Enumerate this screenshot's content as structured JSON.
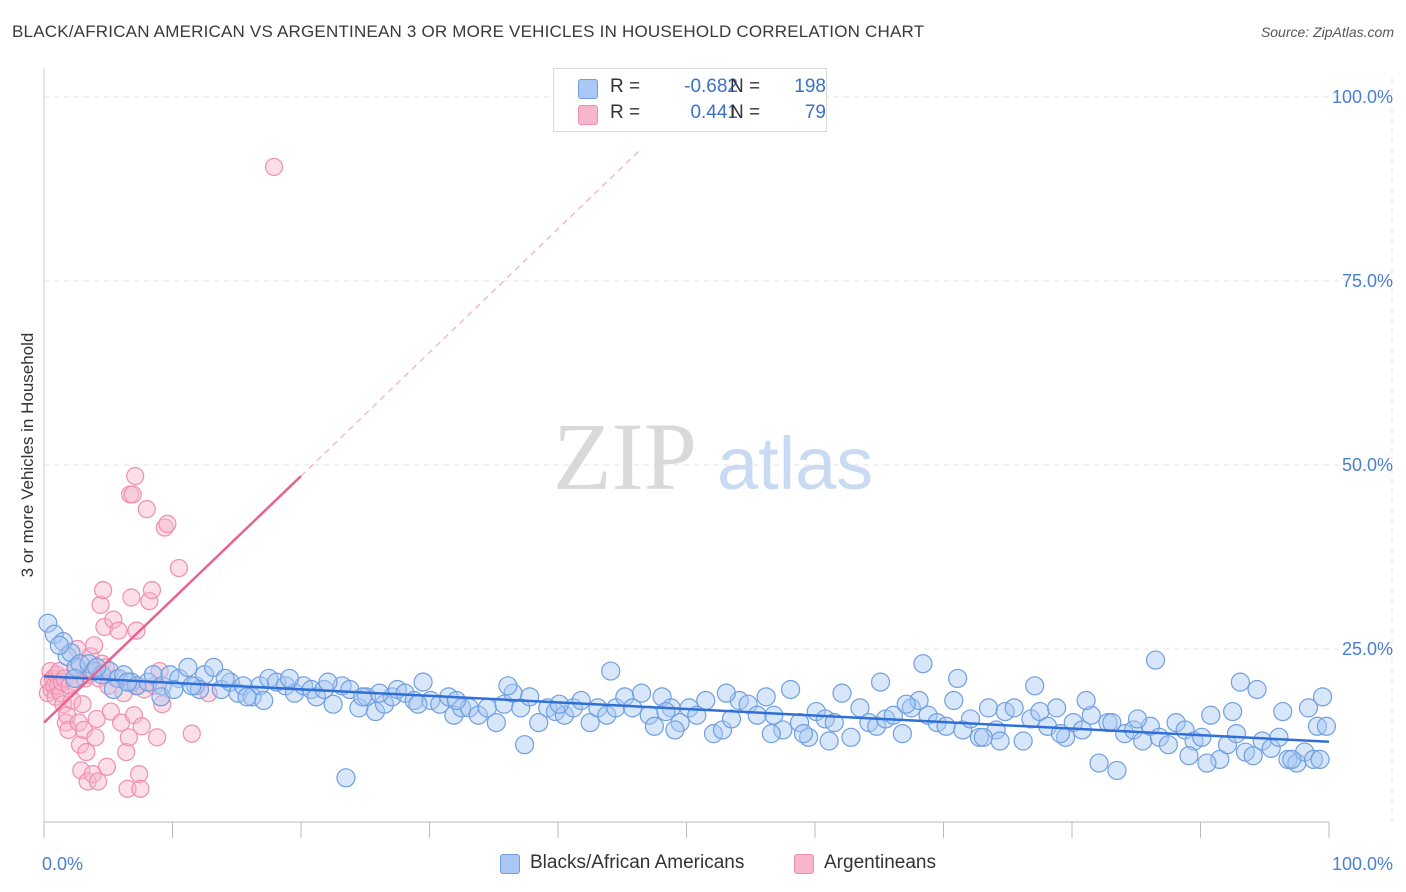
{
  "header": {
    "title": "BLACK/AFRICAN AMERICAN VS ARGENTINEAN 3 OR MORE VEHICLES IN HOUSEHOLD CORRELATION CHART",
    "source": "Source: ZipAtlas.com"
  },
  "watermark": {
    "part1": "ZIP",
    "part2": "atlas"
  },
  "legend": {
    "rows": [
      {
        "r_label": "R =",
        "r_value": "-0.682",
        "n_label": "N =",
        "n_value": "198",
        "color": "#a9c8f5"
      },
      {
        "r_label": "R =",
        "r_value": "0.441",
        "n_label": "N =",
        "n_value": "79",
        "color": "#f7b6cb"
      }
    ]
  },
  "bottom_legend": {
    "items": [
      {
        "label": "Blacks/African Americans",
        "color": "#a9c8f5"
      },
      {
        "label": "Argentineans",
        "color": "#f7b6cb"
      }
    ]
  },
  "colors": {
    "blue_fill": "#a9c8f5",
    "blue_stroke": "#6f9fe0",
    "blue_line": "#2f6fd6",
    "pink_fill": "#f7b6cb",
    "pink_stroke": "#ee8fb0",
    "pink_line": "#e9628f",
    "tick_label": "#4a7fd1",
    "grid": "#e3e3e3"
  },
  "chart_data": {
    "type": "scatter",
    "title": "BLACK/AFRICAN AMERICAN VS ARGENTINEAN 3 OR MORE VEHICLES IN HOUSEHOLD CORRELATION CHART",
    "ylabel": "3 or more Vehicles in Household",
    "xlabel": "",
    "xlim": [
      0,
      100
    ],
    "ylim": [
      0,
      105
    ],
    "x_tick_labels": [
      "0.0%",
      "100.0%"
    ],
    "y_ticks": [
      25,
      50,
      75,
      100
    ],
    "y_tick_labels": [
      "25.0%",
      "50.0%",
      "75.0%",
      "100.0%"
    ],
    "grid": true,
    "legend_position": "top-center",
    "series": [
      {
        "name": "Blacks/African Americans",
        "r": -0.682,
        "n": 198,
        "trend": {
          "x": [
            0,
            100
          ],
          "y": [
            21.3,
            12.4
          ]
        },
        "points": [
          [
            0.3,
            28.5
          ],
          [
            0.8,
            27
          ],
          [
            1.5,
            26
          ],
          [
            1.8,
            24
          ],
          [
            2.1,
            24.5
          ],
          [
            2.5,
            22.5
          ],
          [
            2.8,
            23
          ],
          [
            3.5,
            23
          ],
          [
            3.9,
            22
          ],
          [
            4.5,
            21.5
          ],
          [
            5.1,
            22
          ],
          [
            5.8,
            21
          ],
          [
            6.2,
            21.5
          ],
          [
            6.8,
            20.5
          ],
          [
            7.2,
            20
          ],
          [
            8.1,
            20.5
          ],
          [
            8.5,
            21.5
          ],
          [
            9.2,
            20
          ],
          [
            9.8,
            21.5
          ],
          [
            10.5,
            21
          ],
          [
            11.2,
            22.5
          ],
          [
            11.8,
            20
          ],
          [
            12.5,
            21.5
          ],
          [
            13.2,
            22.5
          ],
          [
            13.8,
            19.5
          ],
          [
            14.5,
            20.5
          ],
          [
            15.1,
            19
          ],
          [
            15.5,
            20
          ],
          [
            16.2,
            18.5
          ],
          [
            16.8,
            20
          ],
          [
            17.5,
            21
          ],
          [
            18.1,
            20.5
          ],
          [
            18.8,
            20
          ],
          [
            19.5,
            19
          ],
          [
            20.2,
            20
          ],
          [
            20.8,
            19.5
          ],
          [
            21.2,
            18.5
          ],
          [
            21.8,
            19.5
          ],
          [
            22.5,
            17.5
          ],
          [
            23.2,
            20
          ],
          [
            23.8,
            19.5
          ],
          [
            24.5,
            17
          ],
          [
            25.1,
            18.5
          ],
          [
            25.8,
            16.5
          ],
          [
            26.5,
            17.5
          ],
          [
            27.1,
            18.5
          ],
          [
            27.5,
            19.5
          ],
          [
            28.1,
            19
          ],
          [
            28.8,
            18
          ],
          [
            29.5,
            20.5
          ],
          [
            30.1,
            18
          ],
          [
            30.8,
            17.5
          ],
          [
            31.5,
            18.5
          ],
          [
            31.9,
            16
          ],
          [
            32.5,
            17
          ],
          [
            33.1,
            17
          ],
          [
            33.8,
            16
          ],
          [
            34.5,
            17
          ],
          [
            35.2,
            15
          ],
          [
            35.8,
            17.5
          ],
          [
            36.5,
            19
          ],
          [
            37.1,
            17
          ],
          [
            37.8,
            18.5
          ],
          [
            38.5,
            15
          ],
          [
            39.2,
            17
          ],
          [
            39.8,
            16.5
          ],
          [
            40.5,
            16
          ],
          [
            41.2,
            17
          ],
          [
            41.8,
            18
          ],
          [
            42.5,
            15
          ],
          [
            43.1,
            17
          ],
          [
            43.8,
            16
          ],
          [
            44.5,
            17
          ],
          [
            45.2,
            18.5
          ],
          [
            45.8,
            17
          ],
          [
            46.5,
            19
          ],
          [
            47.1,
            16
          ],
          [
            47.5,
            14.5
          ],
          [
            48.1,
            18.5
          ],
          [
            48.8,
            17
          ],
          [
            49.5,
            15
          ],
          [
            50.2,
            17
          ],
          [
            50.8,
            16
          ],
          [
            51.5,
            18
          ],
          [
            52.1,
            13.5
          ],
          [
            52.8,
            14
          ],
          [
            53.5,
            15.5
          ],
          [
            54.1,
            18
          ],
          [
            54.8,
            17.5
          ],
          [
            55.5,
            16
          ],
          [
            56.2,
            18.5
          ],
          [
            56.8,
            16
          ],
          [
            57.5,
            14
          ],
          [
            58.1,
            19.5
          ],
          [
            58.8,
            15
          ],
          [
            59.5,
            13
          ],
          [
            60.1,
            16.5
          ],
          [
            60.8,
            15.5
          ],
          [
            61.5,
            15
          ],
          [
            62.1,
            19
          ],
          [
            62.8,
            13
          ],
          [
            63.5,
            17
          ],
          [
            64.2,
            15
          ],
          [
            64.8,
            14.5
          ],
          [
            65.5,
            15.5
          ],
          [
            66.1,
            16
          ],
          [
            66.8,
            13.5
          ],
          [
            67.5,
            17
          ],
          [
            68.1,
            18
          ],
          [
            68.8,
            16
          ],
          [
            69.5,
            15
          ],
          [
            70.2,
            14.5
          ],
          [
            70.8,
            18
          ],
          [
            71.5,
            14
          ],
          [
            72.1,
            15.5
          ],
          [
            72.8,
            13
          ],
          [
            73.5,
            17
          ],
          [
            74.1,
            14
          ],
          [
            74.8,
            16.5
          ],
          [
            75.5,
            17
          ],
          [
            76.2,
            12.5
          ],
          [
            76.8,
            15.5
          ],
          [
            77.5,
            16.5
          ],
          [
            78.1,
            14.5
          ],
          [
            78.8,
            17
          ],
          [
            79.5,
            13
          ],
          [
            80.1,
            15
          ],
          [
            80.8,
            14
          ],
          [
            81.5,
            16
          ],
          [
            82.1,
            9.5
          ],
          [
            82.8,
            15
          ],
          [
            83.5,
            8.5
          ],
          [
            84.1,
            13.5
          ],
          [
            84.8,
            14
          ],
          [
            85.5,
            12.5
          ],
          [
            86.1,
            14.5
          ],
          [
            86.8,
            13
          ],
          [
            87.5,
            12
          ],
          [
            88.1,
            15
          ],
          [
            88.8,
            14
          ],
          [
            89.5,
            12.5
          ],
          [
            90.1,
            13
          ],
          [
            90.8,
            16
          ],
          [
            91.5,
            10
          ],
          [
            92.1,
            12
          ],
          [
            92.8,
            13.5
          ],
          [
            93.5,
            11
          ],
          [
            94.1,
            10.5
          ],
          [
            94.8,
            12.5
          ],
          [
            95.5,
            11.5
          ],
          [
            96.1,
            13
          ],
          [
            96.8,
            10
          ],
          [
            97.5,
            9.5
          ],
          [
            98.1,
            11
          ],
          [
            98.8,
            10
          ],
          [
            99.3,
            10
          ],
          [
            99.5,
            18.5
          ],
          [
            2.4,
            21
          ],
          [
            5.4,
            19.5
          ],
          [
            9.1,
            18.5
          ],
          [
            12.1,
            19.5
          ],
          [
            17.1,
            18
          ],
          [
            22.1,
            20.5
          ],
          [
            26.1,
            19
          ],
          [
            29.1,
            17.5
          ],
          [
            32.1,
            18
          ],
          [
            36.1,
            20
          ],
          [
            40.1,
            17.5
          ],
          [
            44.1,
            22
          ],
          [
            48.4,
            16.5
          ],
          [
            53.1,
            19
          ],
          [
            56.6,
            13.5
          ],
          [
            61.1,
            12.5
          ],
          [
            65.1,
            20.5
          ],
          [
            68.4,
            23
          ],
          [
            71.1,
            21
          ],
          [
            74.4,
            12.5
          ],
          [
            77.1,
            20
          ],
          [
            81.1,
            18
          ],
          [
            85.1,
            15.5
          ],
          [
            86.5,
            23.5
          ],
          [
            89.1,
            10.5
          ],
          [
            92.5,
            16.5
          ],
          [
            93.1,
            20.5
          ],
          [
            94.4,
            19.5
          ],
          [
            96.4,
            16.5
          ],
          [
            98.4,
            17
          ],
          [
            99.1,
            14.5
          ],
          [
            99.8,
            14.5
          ],
          [
            97.1,
            10
          ],
          [
            90.5,
            9.5
          ],
          [
            83.1,
            15
          ],
          [
            79.1,
            13.5
          ],
          [
            73.1,
            13
          ],
          [
            67.1,
            17.5
          ],
          [
            59.1,
            13.5
          ],
          [
            49.1,
            14
          ],
          [
            37.4,
            12
          ],
          [
            23.5,
            7.5
          ],
          [
            14.1,
            21
          ],
          [
            10.1,
            19.5
          ],
          [
            4.1,
            22.5
          ],
          [
            1.2,
            25.5
          ],
          [
            6.5,
            20.5
          ],
          [
            11.5,
            20
          ],
          [
            15.8,
            18.5
          ],
          [
            19.1,
            21
          ],
          [
            24.8,
            18.5
          ]
        ]
      },
      {
        "name": "Argentineans",
        "r": 0.441,
        "n": 79,
        "trend": {
          "x": [
            0,
            20
          ],
          "y": [
            15,
            48.5
          ]
        },
        "trend_dashed": {
          "x": [
            20,
            46.5
          ],
          "y": [
            48.5,
            93
          ]
        },
        "points": [
          [
            0.3,
            19
          ],
          [
            0.4,
            20.5
          ],
          [
            0.5,
            22
          ],
          [
            0.6,
            19.5
          ],
          [
            0.7,
            21
          ],
          [
            0.8,
            20
          ],
          [
            0.9,
            18.5
          ],
          [
            1.0,
            21.5
          ],
          [
            1.1,
            20
          ],
          [
            1.2,
            22
          ],
          [
            1.3,
            19
          ],
          [
            1.4,
            20.5
          ],
          [
            1.5,
            17.5
          ],
          [
            1.6,
            21
          ],
          [
            1.7,
            15
          ],
          [
            1.8,
            16
          ],
          [
            1.9,
            14
          ],
          [
            2.0,
            20
          ],
          [
            2.2,
            18
          ],
          [
            2.4,
            20.5
          ],
          [
            2.5,
            22.5
          ],
          [
            2.6,
            25
          ],
          [
            2.7,
            15
          ],
          [
            2.8,
            12
          ],
          [
            2.9,
            8.5
          ],
          [
            3.0,
            17.5
          ],
          [
            3.1,
            14
          ],
          [
            3.2,
            21
          ],
          [
            3.3,
            11
          ],
          [
            3.4,
            7
          ],
          [
            3.5,
            21.5
          ],
          [
            3.6,
            24
          ],
          [
            3.7,
            22
          ],
          [
            3.8,
            8
          ],
          [
            3.9,
            25.5
          ],
          [
            4.0,
            13
          ],
          [
            4.1,
            15.5
          ],
          [
            4.2,
            7
          ],
          [
            4.3,
            21
          ],
          [
            4.4,
            31
          ],
          [
            4.5,
            23
          ],
          [
            4.6,
            33
          ],
          [
            4.7,
            28
          ],
          [
            4.8,
            22.5
          ],
          [
            4.9,
            9
          ],
          [
            5.0,
            20
          ],
          [
            5.2,
            16.5
          ],
          [
            5.4,
            29
          ],
          [
            5.6,
            21
          ],
          [
            5.8,
            27.5
          ],
          [
            6.0,
            15
          ],
          [
            6.2,
            19
          ],
          [
            6.4,
            11
          ],
          [
            6.5,
            6
          ],
          [
            6.6,
            13
          ],
          [
            6.7,
            46
          ],
          [
            6.8,
            32
          ],
          [
            6.9,
            46
          ],
          [
            7.0,
            16
          ],
          [
            7.1,
            48.5
          ],
          [
            7.2,
            27.5
          ],
          [
            7.3,
            20
          ],
          [
            7.4,
            8
          ],
          [
            7.5,
            6
          ],
          [
            7.6,
            14.5
          ],
          [
            7.8,
            19.5
          ],
          [
            8.0,
            44
          ],
          [
            8.2,
            31.5
          ],
          [
            8.4,
            33
          ],
          [
            8.6,
            20
          ],
          [
            8.8,
            13
          ],
          [
            9.0,
            22
          ],
          [
            9.2,
            17.5
          ],
          [
            9.4,
            41.5
          ],
          [
            9.6,
            42
          ],
          [
            10.5,
            36
          ],
          [
            11.5,
            13.5
          ],
          [
            12.8,
            19
          ],
          [
            17.9,
            90.5
          ]
        ]
      }
    ]
  }
}
